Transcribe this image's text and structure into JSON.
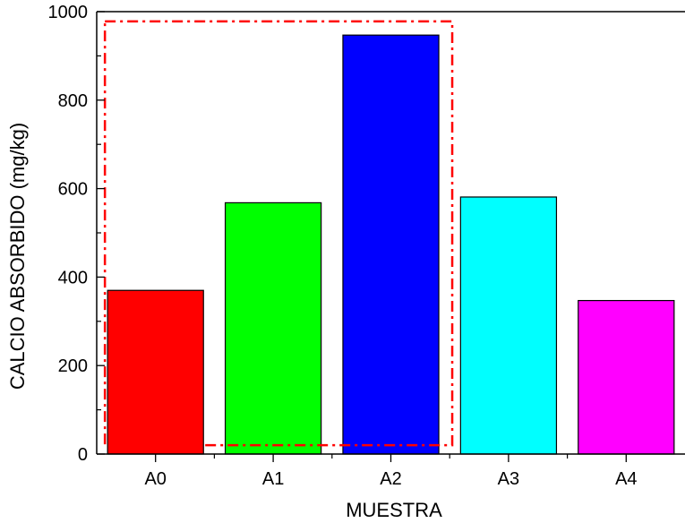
{
  "chart_data": {
    "type": "bar",
    "title": "",
    "xlabel": "MUESTRA",
    "ylabel": "CALCIO ABSORBIDO (mg/kg)",
    "categories": [
      "A0",
      "A1",
      "A2",
      "A3",
      "A4"
    ],
    "values": [
      370,
      568,
      947,
      581,
      347
    ],
    "colors": [
      "#ff0000",
      "#00ff00",
      "#0000ff",
      "#00ffff",
      "#ff00ff"
    ],
    "ylim": [
      0,
      1000
    ],
    "yticks": [
      0,
      200,
      400,
      600,
      800,
      1000
    ],
    "yticklabels": [
      "0",
      "200",
      "400",
      "600",
      "800",
      "1000"
    ],
    "grid": false,
    "legend": "none",
    "highlight": {
      "style": "dash-dot",
      "color": "#ff0000",
      "categories": [
        "A0",
        "A1",
        "A2"
      ],
      "y_range": [
        20,
        978
      ]
    }
  }
}
